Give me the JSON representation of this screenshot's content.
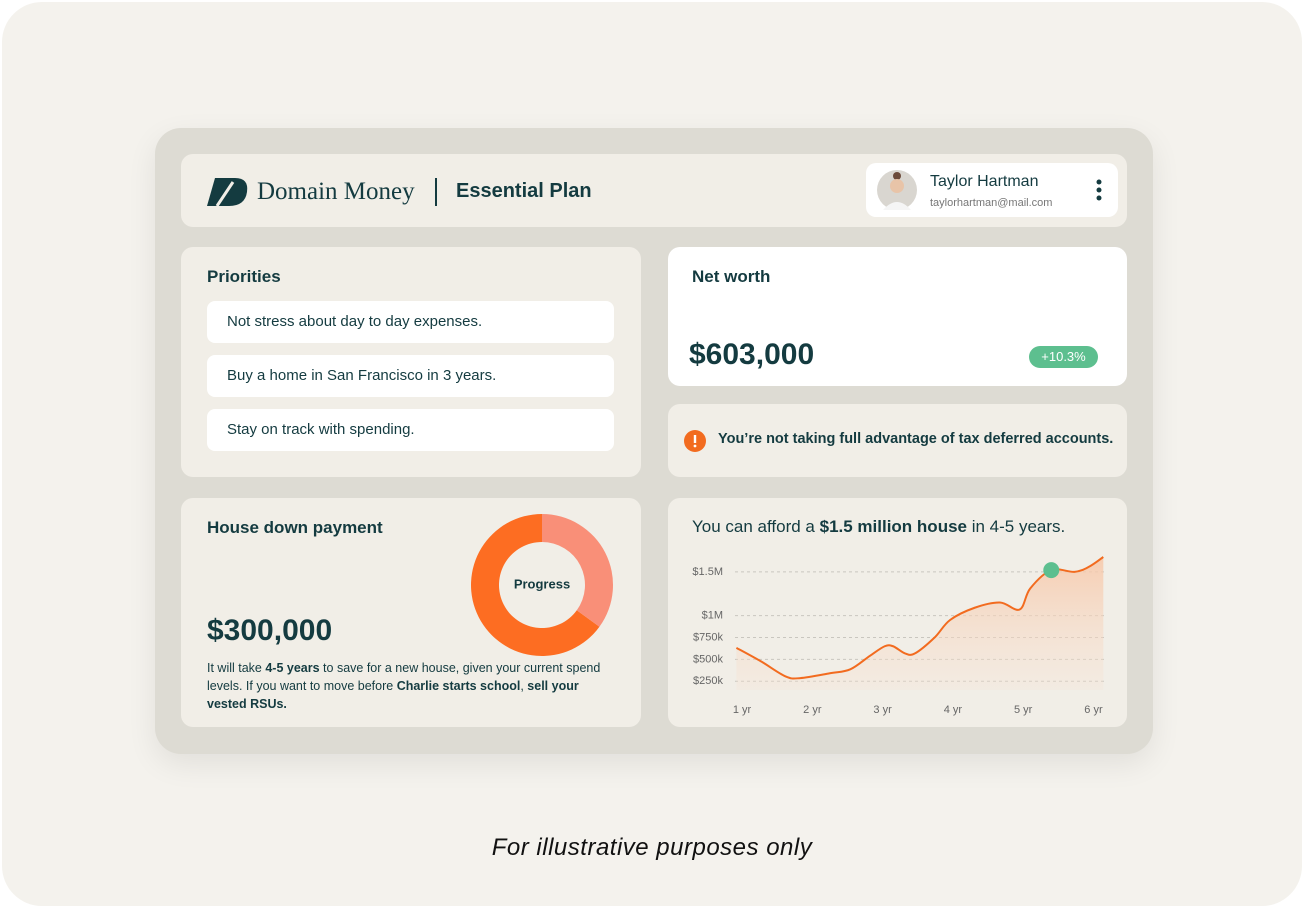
{
  "header": {
    "brand": "Domain Money",
    "plan": "Essential Plan",
    "user": {
      "name": "Taylor Hartman",
      "email": "taylorhartman@mail.com"
    }
  },
  "priorities": {
    "title": "Priorities",
    "items": [
      "Not stress about day to day expenses.",
      "Buy a home in San Francisco in 3 years.",
      "Stay on track with spending."
    ]
  },
  "net_worth": {
    "title": "Net worth",
    "amount": "$603,000",
    "change": "+10.3%"
  },
  "alert": {
    "text": "You’re not taking full advantage of tax deferred accounts."
  },
  "house_payment": {
    "title": "House down payment",
    "amount": "$300,000",
    "donut": {
      "type": "pie",
      "label": "Progress",
      "values": [
        35,
        65
      ],
      "colors": [
        "#f98f78",
        "#fd6d22"
      ]
    },
    "description": [
      {
        "text": "It will take ",
        "bold": false
      },
      {
        "text": "4-5 years",
        "bold": true
      },
      {
        "text": " to save for a new house, given your current spend levels. If you want to move before ",
        "bold": false
      },
      {
        "text": "Charlie starts school",
        "bold": true
      },
      {
        "text": ", ",
        "bold": false
      },
      {
        "text": "sell your vested RSUs.",
        "bold": true
      }
    ]
  },
  "chart_data": {
    "type": "area",
    "title": [
      {
        "text": "You can afford a ",
        "bold": false
      },
      {
        "text": "$1.5 million house",
        "bold": true
      },
      {
        "text": " in 4-5 years.",
        "bold": false
      }
    ],
    "x": [
      0.92,
      1.27,
      1.62,
      1.83,
      2.25,
      2.54,
      2.82,
      3.03,
      3.15,
      3.32,
      3.46,
      3.74,
      3.96,
      4.31,
      4.67,
      4.95,
      5.1,
      5.4,
      5.73,
      5.94,
      6.14
    ],
    "series": [
      {
        "color": "#f26b1f",
        "values": [
          632000,
          477000,
          305000,
          286000,
          341000,
          386000,
          541000,
          650000,
          650000,
          568000,
          568000,
          750000,
          950000,
          1090000,
          1150000,
          1070000,
          1310000,
          1520000,
          1500000,
          1560000,
          1670000
        ]
      }
    ],
    "xlim": [
      0.9,
      6.15
    ],
    "xticks": [
      {
        "value": 1,
        "label": "1 yr"
      },
      {
        "value": 2,
        "label": "2 yr"
      },
      {
        "value": 3,
        "label": "3 yr"
      },
      {
        "value": 4,
        "label": "4 yr"
      },
      {
        "value": 5,
        "label": "5 yr"
      },
      {
        "value": 6,
        "label": "6 yr"
      }
    ],
    "ylim": [
      150000,
      1750000
    ],
    "yticks": [
      {
        "value": 250000,
        "label": "$250k"
      },
      {
        "value": 500000,
        "label": "$500k"
      },
      {
        "value": 750000,
        "label": "$750k"
      },
      {
        "value": 1000000,
        "label": "$1M"
      },
      {
        "value": 1500000,
        "label": "$1.5M"
      }
    ],
    "grid": true,
    "highlight_index": 17,
    "highlight_color": "#5dbf8f"
  },
  "footer": "For illustrative purposes only"
}
